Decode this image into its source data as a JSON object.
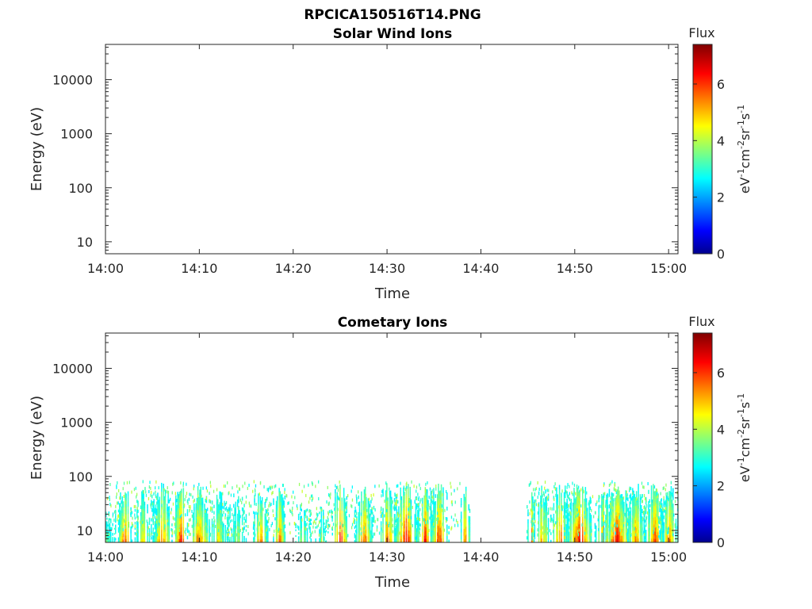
{
  "figure_title": "RPCICA150516T14.PNG",
  "chart_data": [
    {
      "type": "heatmap",
      "title": "Solar Wind Ions",
      "xlabel": "Time",
      "ylabel": "Energy (eV)",
      "x_range": [
        "14:00",
        "15:01"
      ],
      "x_ticks": [
        "14:00",
        "14:10",
        "14:20",
        "14:30",
        "14:40",
        "14:50",
        "15:00"
      ],
      "y_scale": "log",
      "y_range": [
        6,
        45000
      ],
      "y_ticks": [
        "10",
        "100",
        "1000",
        "10000"
      ],
      "colorbar": {
        "title": "Flux",
        "range": [
          0,
          7.4
        ],
        "ticks": [
          "0",
          "2",
          "4",
          "6"
        ],
        "label_base": [
          "eV",
          "cm",
          "sr",
          "s"
        ],
        "label_exp": [
          "-1",
          "-2",
          "-1",
          "-1"
        ],
        "colormap": "jet"
      },
      "data": []
    },
    {
      "type": "heatmap",
      "title": "Cometary Ions",
      "xlabel": "Time",
      "ylabel": "Energy (eV)",
      "x_range": [
        "14:00",
        "15:01"
      ],
      "x_ticks": [
        "14:00",
        "14:10",
        "14:20",
        "14:30",
        "14:40",
        "14:50",
        "15:00"
      ],
      "y_scale": "log",
      "y_range": [
        6,
        45000
      ],
      "y_ticks": [
        "10",
        "100",
        "1000",
        "10000"
      ],
      "colorbar": {
        "title": "Flux",
        "range": [
          0,
          7.4
        ],
        "ticks": [
          "0",
          "2",
          "4",
          "6"
        ],
        "label_base": [
          "eV",
          "cm",
          "sr",
          "s"
        ],
        "label_exp": [
          "-1",
          "-2",
          "-1",
          "-1"
        ],
        "colormap": "jet"
      },
      "energy_range_of_signal": [
        6,
        80
      ],
      "data_gaps": [
        [
          "14:38",
          "14:45"
        ]
      ],
      "bursts": [
        {
          "t": "14:00",
          "dur_min": 1.5,
          "emax": 30,
          "flux": 4.5
        },
        {
          "t": "14:02",
          "dur_min": 0.7,
          "emax": 70,
          "flux": 7.0
        },
        {
          "t": "14:04",
          "dur_min": 1.0,
          "emax": 70,
          "flux": 5.5
        },
        {
          "t": "14:06",
          "dur_min": 1.0,
          "emax": 80,
          "flux": 6.5
        },
        {
          "t": "14:08",
          "dur_min": 0.7,
          "emax": 80,
          "flux": 7.4
        },
        {
          "t": "14:10",
          "dur_min": 1.2,
          "emax": 80,
          "flux": 6.5
        },
        {
          "t": "14:12",
          "dur_min": 1.0,
          "emax": 60,
          "flux": 5.5
        },
        {
          "t": "14:14",
          "dur_min": 1.0,
          "emax": 60,
          "flux": 4.8
        },
        {
          "t": "14:16.5",
          "dur_min": 0.8,
          "emax": 70,
          "flux": 6.5
        },
        {
          "t": "14:18.5",
          "dur_min": 0.6,
          "emax": 80,
          "flux": 6.8
        },
        {
          "t": "14:21",
          "dur_min": 0.8,
          "emax": 40,
          "flux": 5.0
        },
        {
          "t": "14:23",
          "dur_min": 0.6,
          "emax": 40,
          "flux": 4.8
        },
        {
          "t": "14:25",
          "dur_min": 0.8,
          "emax": 80,
          "flux": 7.2
        },
        {
          "t": "14:27.5",
          "dur_min": 1.0,
          "emax": 70,
          "flux": 6.5
        },
        {
          "t": "14:30",
          "dur_min": 1.0,
          "emax": 80,
          "flux": 6.5
        },
        {
          "t": "14:32",
          "dur_min": 1.2,
          "emax": 80,
          "flux": 7.3
        },
        {
          "t": "14:34",
          "dur_min": 1.0,
          "emax": 80,
          "flux": 6.8
        },
        {
          "t": "14:35.5",
          "dur_min": 1.0,
          "emax": 80,
          "flux": 7.0
        },
        {
          "t": "14:38.3",
          "dur_min": 0.6,
          "emax": 80,
          "flux": 6.5
        },
        {
          "t": "14:45.3",
          "dur_min": 0.4,
          "emax": 80,
          "flux": 7.2
        },
        {
          "t": "14:46.5",
          "dur_min": 1.0,
          "emax": 70,
          "flux": 6.0
        },
        {
          "t": "14:48.5",
          "dur_min": 1.0,
          "emax": 80,
          "flux": 6.5
        },
        {
          "t": "14:50.5",
          "dur_min": 1.5,
          "emax": 80,
          "flux": 7.0
        },
        {
          "t": "14:53",
          "dur_min": 1.0,
          "emax": 80,
          "flux": 6.5
        },
        {
          "t": "14:54.5",
          "dur_min": 1.5,
          "emax": 80,
          "flux": 7.2
        },
        {
          "t": "14:56.5",
          "dur_min": 1.0,
          "emax": 80,
          "flux": 6.5
        },
        {
          "t": "14:58.5",
          "dur_min": 1.0,
          "emax": 80,
          "flux": 6.8
        },
        {
          "t": "15:00",
          "dur_min": 1.0,
          "emax": 80,
          "flux": 6.5
        }
      ]
    }
  ]
}
